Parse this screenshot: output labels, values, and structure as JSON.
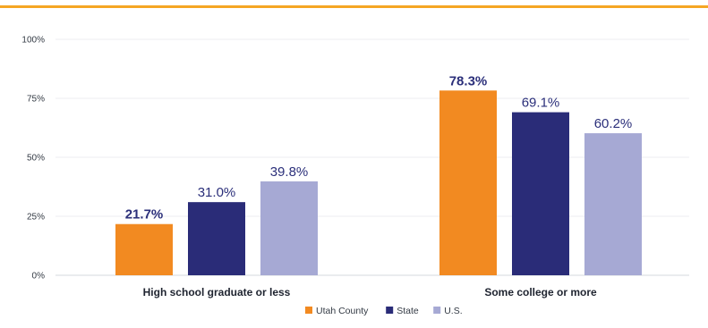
{
  "chart_data": {
    "type": "bar",
    "categories": [
      "High school graduate or less",
      "Some college or more"
    ],
    "series": [
      {
        "name": "Utah County",
        "values": [
          21.7,
          78.3
        ],
        "labels": [
          "21.7%",
          "78.3%"
        ],
        "color": "#f28a21"
      },
      {
        "name": "State",
        "values": [
          31.0,
          69.1
        ],
        "labels": [
          "31.0%",
          "69.1%"
        ],
        "color": "#2a2c78"
      },
      {
        "name": "U.S.",
        "values": [
          39.8,
          60.2
        ],
        "labels": [
          "39.8%",
          "60.2%"
        ],
        "color": "#a6a9d4"
      }
    ],
    "ylim": [
      0,
      100
    ],
    "yticks": [
      0,
      25,
      50,
      75,
      100
    ],
    "ytick_labels": [
      "0%",
      "25%",
      "50%",
      "75%",
      "100%"
    ],
    "grid": true,
    "legend_position": "bottom-center",
    "accent_color": "#f5a623"
  }
}
